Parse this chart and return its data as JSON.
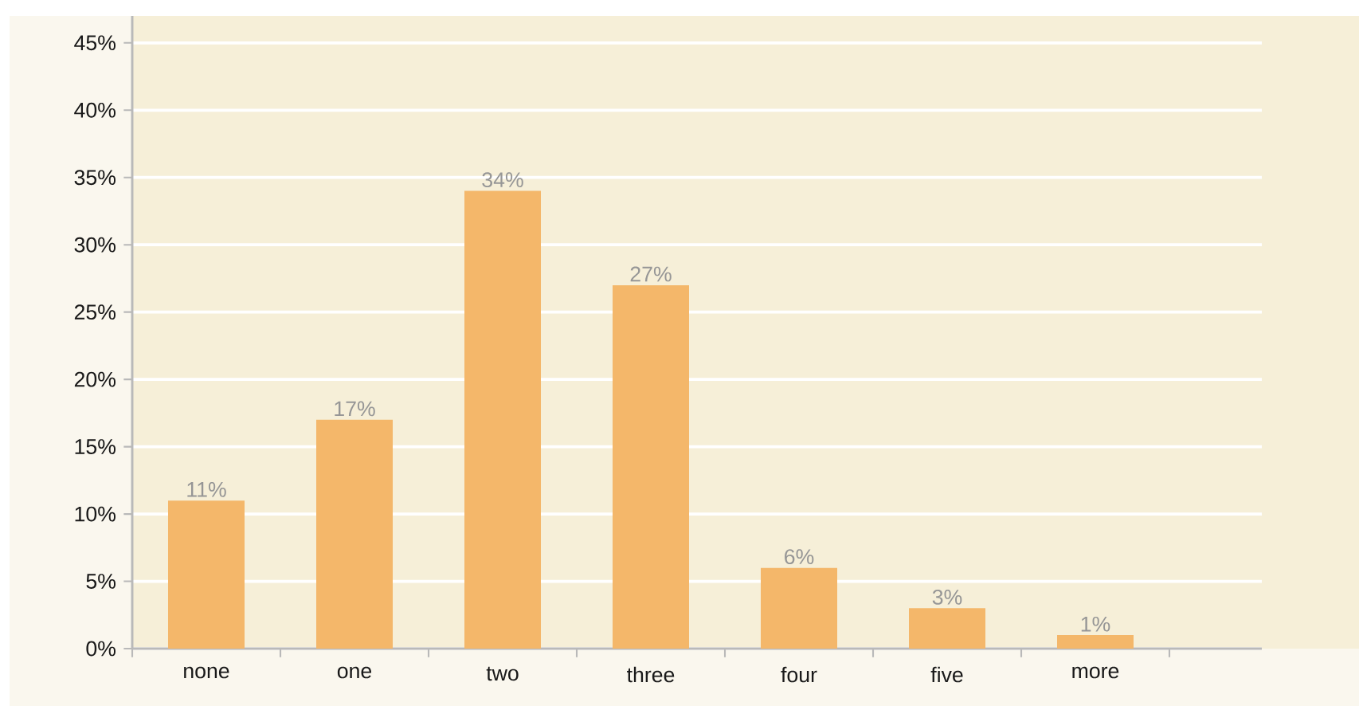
{
  "chart_data": {
    "type": "bar",
    "categories": [
      "none",
      "one",
      "two",
      "three",
      "four",
      "five",
      "more"
    ],
    "values": [
      11,
      17,
      34,
      27,
      6,
      3,
      1
    ],
    "value_labels": [
      "11%",
      "17%",
      "34%",
      "27%",
      "6%",
      "3%",
      "1%"
    ],
    "color": "#f4b76a",
    "ylim": [
      0,
      47
    ],
    "yticks": [
      {
        "value": 0,
        "label": "0%"
      },
      {
        "value": 5,
        "label": "5%"
      },
      {
        "value": 10,
        "label": "10%"
      },
      {
        "value": 15,
        "label": "15%"
      },
      {
        "value": 20,
        "label": "20%"
      },
      {
        "value": 25,
        "label": "25%"
      },
      {
        "value": 30,
        "label": "30%"
      },
      {
        "value": 35,
        "label": "35%"
      },
      {
        "value": 40,
        "label": "40%"
      },
      {
        "value": 45,
        "label": "45%"
      }
    ],
    "grid": "y"
  }
}
